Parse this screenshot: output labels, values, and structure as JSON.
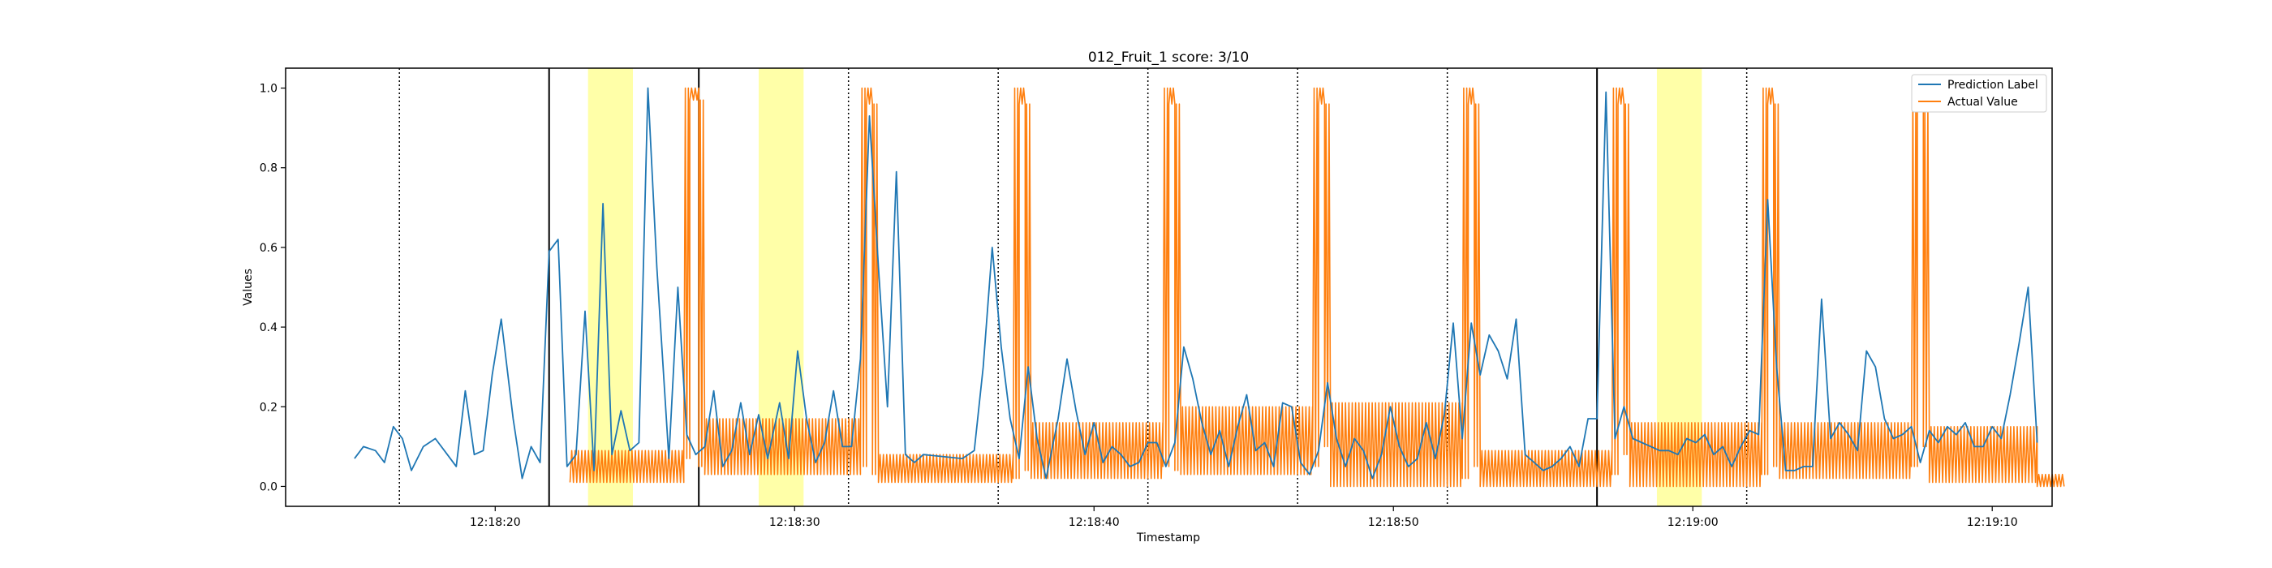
{
  "chart_data": {
    "type": "line",
    "title": "012_Fruit_1 score: 3/10",
    "xlabel": "Timestamp",
    "ylabel": "Values",
    "x_unit": "seconds after 12:18:00",
    "xlim": [
      13,
      72
    ],
    "ylim": [
      -0.05,
      1.05
    ],
    "x_ticks": [
      {
        "value": 20,
        "label": "12:18:20"
      },
      {
        "value": 30,
        "label": "12:18:30"
      },
      {
        "value": 40,
        "label": "12:18:40"
      },
      {
        "value": 50,
        "label": "12:18:50"
      },
      {
        "value": 60,
        "label": "12:19:00"
      },
      {
        "value": 70,
        "label": "12:19:10"
      }
    ],
    "y_ticks": [
      {
        "value": 0.0,
        "label": "0.0"
      },
      {
        "value": 0.2,
        "label": "0.2"
      },
      {
        "value": 0.4,
        "label": "0.4"
      },
      {
        "value": 0.6,
        "label": "0.6"
      },
      {
        "value": 0.8,
        "label": "0.8"
      },
      {
        "value": 1.0,
        "label": "1.0"
      }
    ],
    "legend": {
      "position": "top-right"
    },
    "grid": false,
    "series": [
      {
        "name": "Prediction Label",
        "color": "#1f77b4",
        "points": [
          [
            15.3,
            0.07
          ],
          [
            15.6,
            0.1
          ],
          [
            16.0,
            0.09
          ],
          [
            16.3,
            0.06
          ],
          [
            16.6,
            0.15
          ],
          [
            16.9,
            0.12
          ],
          [
            17.2,
            0.04
          ],
          [
            17.6,
            0.1
          ],
          [
            18.0,
            0.12
          ],
          [
            18.4,
            0.08
          ],
          [
            18.7,
            0.05
          ],
          [
            19.0,
            0.24
          ],
          [
            19.3,
            0.08
          ],
          [
            19.6,
            0.09
          ],
          [
            19.9,
            0.28
          ],
          [
            20.2,
            0.42
          ],
          [
            20.6,
            0.17
          ],
          [
            20.9,
            0.02
          ],
          [
            21.2,
            0.1
          ],
          [
            21.5,
            0.06
          ],
          [
            21.8,
            0.59
          ],
          [
            22.1,
            0.62
          ],
          [
            22.4,
            0.05
          ],
          [
            22.7,
            0.08
          ],
          [
            23.0,
            0.44
          ],
          [
            23.3,
            0.04
          ],
          [
            23.6,
            0.71
          ],
          [
            23.9,
            0.08
          ],
          [
            24.2,
            0.19
          ],
          [
            24.5,
            0.09
          ],
          [
            24.8,
            0.11
          ],
          [
            25.1,
            1.0
          ],
          [
            25.4,
            0.55
          ],
          [
            25.8,
            0.07
          ],
          [
            26.1,
            0.5
          ],
          [
            26.4,
            0.13
          ],
          [
            26.7,
            0.08
          ],
          [
            27.0,
            0.1
          ],
          [
            27.3,
            0.24
          ],
          [
            27.6,
            0.05
          ],
          [
            27.9,
            0.09
          ],
          [
            28.2,
            0.21
          ],
          [
            28.5,
            0.08
          ],
          [
            28.8,
            0.18
          ],
          [
            29.1,
            0.07
          ],
          [
            29.5,
            0.21
          ],
          [
            29.8,
            0.07
          ],
          [
            30.1,
            0.34
          ],
          [
            30.4,
            0.17
          ],
          [
            30.7,
            0.06
          ],
          [
            31.0,
            0.11
          ],
          [
            31.3,
            0.24
          ],
          [
            31.6,
            0.1
          ],
          [
            31.9,
            0.1
          ],
          [
            32.2,
            0.32
          ],
          [
            32.5,
            0.93
          ],
          [
            32.8,
            0.55
          ],
          [
            33.1,
            0.2
          ],
          [
            33.4,
            0.79
          ],
          [
            33.7,
            0.08
          ],
          [
            34.0,
            0.06
          ],
          [
            34.3,
            0.08
          ],
          [
            35.6,
            0.07
          ],
          [
            36.0,
            0.09
          ],
          [
            36.3,
            0.3
          ],
          [
            36.6,
            0.6
          ],
          [
            36.9,
            0.35
          ],
          [
            37.2,
            0.17
          ],
          [
            37.5,
            0.07
          ],
          [
            37.8,
            0.3
          ],
          [
            38.1,
            0.12
          ],
          [
            38.4,
            0.02
          ],
          [
            38.8,
            0.17
          ],
          [
            39.1,
            0.32
          ],
          [
            39.4,
            0.19
          ],
          [
            39.7,
            0.08
          ],
          [
            40.0,
            0.16
          ],
          [
            40.3,
            0.06
          ],
          [
            40.6,
            0.1
          ],
          [
            40.9,
            0.08
          ],
          [
            41.2,
            0.05
          ],
          [
            41.5,
            0.06
          ],
          [
            41.8,
            0.11
          ],
          [
            42.1,
            0.11
          ],
          [
            42.4,
            0.05
          ],
          [
            42.7,
            0.11
          ],
          [
            43.0,
            0.35
          ],
          [
            43.3,
            0.27
          ],
          [
            43.6,
            0.16
          ],
          [
            43.9,
            0.08
          ],
          [
            44.2,
            0.14
          ],
          [
            44.5,
            0.05
          ],
          [
            44.8,
            0.15
          ],
          [
            45.1,
            0.23
          ],
          [
            45.4,
            0.09
          ],
          [
            45.7,
            0.11
          ],
          [
            46.0,
            0.05
          ],
          [
            46.3,
            0.21
          ],
          [
            46.6,
            0.2
          ],
          [
            46.9,
            0.06
          ],
          [
            47.2,
            0.03
          ],
          [
            47.5,
            0.09
          ],
          [
            47.8,
            0.26
          ],
          [
            48.1,
            0.12
          ],
          [
            48.4,
            0.05
          ],
          [
            48.7,
            0.12
          ],
          [
            49.0,
            0.09
          ],
          [
            49.3,
            0.02
          ],
          [
            49.6,
            0.08
          ],
          [
            49.9,
            0.2
          ],
          [
            50.2,
            0.1
          ],
          [
            50.5,
            0.05
          ],
          [
            50.8,
            0.07
          ],
          [
            51.1,
            0.16
          ],
          [
            51.4,
            0.07
          ],
          [
            51.7,
            0.18
          ],
          [
            52.0,
            0.41
          ],
          [
            52.3,
            0.12
          ],
          [
            52.6,
            0.41
          ],
          [
            52.9,
            0.28
          ],
          [
            53.2,
            0.38
          ],
          [
            53.5,
            0.34
          ],
          [
            53.8,
            0.27
          ],
          [
            54.1,
            0.42
          ],
          [
            54.4,
            0.08
          ],
          [
            54.7,
            0.06
          ],
          [
            55.0,
            0.04
          ],
          [
            55.3,
            0.05
          ],
          [
            55.6,
            0.07
          ],
          [
            55.9,
            0.1
          ],
          [
            56.2,
            0.05
          ],
          [
            56.5,
            0.17
          ],
          [
            56.8,
            0.17
          ],
          [
            57.1,
            0.99
          ],
          [
            57.4,
            0.12
          ],
          [
            57.7,
            0.2
          ],
          [
            58.0,
            0.12
          ],
          [
            58.3,
            0.11
          ],
          [
            58.6,
            0.1
          ],
          [
            58.9,
            0.09
          ],
          [
            59.2,
            0.09
          ],
          [
            59.5,
            0.08
          ],
          [
            59.8,
            0.12
          ],
          [
            60.1,
            0.11
          ],
          [
            60.4,
            0.13
          ],
          [
            60.7,
            0.08
          ],
          [
            61.0,
            0.1
          ],
          [
            61.3,
            0.05
          ],
          [
            61.6,
            0.1
          ],
          [
            61.9,
            0.14
          ],
          [
            62.2,
            0.13
          ],
          [
            62.5,
            0.72
          ],
          [
            62.8,
            0.3
          ],
          [
            63.1,
            0.04
          ],
          [
            63.4,
            0.04
          ],
          [
            63.7,
            0.05
          ],
          [
            64.0,
            0.05
          ],
          [
            64.3,
            0.47
          ],
          [
            64.6,
            0.12
          ],
          [
            64.9,
            0.16
          ],
          [
            65.2,
            0.13
          ],
          [
            65.5,
            0.09
          ],
          [
            65.8,
            0.34
          ],
          [
            66.1,
            0.3
          ],
          [
            66.4,
            0.17
          ],
          [
            66.7,
            0.12
          ],
          [
            67.0,
            0.13
          ],
          [
            67.3,
            0.15
          ],
          [
            67.6,
            0.06
          ],
          [
            67.9,
            0.14
          ],
          [
            68.2,
            0.11
          ],
          [
            68.5,
            0.15
          ],
          [
            68.8,
            0.13
          ],
          [
            69.1,
            0.16
          ],
          [
            69.4,
            0.1
          ],
          [
            69.7,
            0.1
          ],
          [
            70.0,
            0.15
          ],
          [
            70.3,
            0.12
          ],
          [
            70.6,
            0.23
          ],
          [
            70.9,
            0.36
          ],
          [
            71.2,
            0.5
          ],
          [
            71.5,
            0.11
          ]
        ]
      },
      {
        "name": "Actual Value",
        "color": "#ff7f0e",
        "segments": [
          {
            "from": 22.5,
            "to": 26.3,
            "lo": 0.01,
            "hi": 0.09
          },
          {
            "from": 26.3,
            "to": 26.5,
            "lo": 0.07,
            "hi": 1.0
          },
          {
            "from": 26.5,
            "to": 26.8,
            "lo": 0.97,
            "hi": 1.0
          },
          {
            "from": 26.8,
            "to": 27.0,
            "lo": 0.05,
            "hi": 0.97
          },
          {
            "from": 27.0,
            "to": 32.2,
            "lo": 0.03,
            "hi": 0.17
          },
          {
            "from": 32.2,
            "to": 32.4,
            "lo": 0.05,
            "hi": 1.0
          },
          {
            "from": 32.4,
            "to": 32.6,
            "lo": 0.96,
            "hi": 1.0
          },
          {
            "from": 32.6,
            "to": 32.8,
            "lo": 0.03,
            "hi": 0.96
          },
          {
            "from": 32.8,
            "to": 37.3,
            "lo": 0.01,
            "hi": 0.08
          },
          {
            "from": 37.3,
            "to": 37.5,
            "lo": 0.02,
            "hi": 1.0
          },
          {
            "from": 37.5,
            "to": 37.7,
            "lo": 0.96,
            "hi": 1.0
          },
          {
            "from": 37.7,
            "to": 37.9,
            "lo": 0.04,
            "hi": 0.96
          },
          {
            "from": 37.9,
            "to": 42.3,
            "lo": 0.02,
            "hi": 0.16
          },
          {
            "from": 42.3,
            "to": 42.5,
            "lo": 0.05,
            "hi": 1.0
          },
          {
            "from": 42.5,
            "to": 42.7,
            "lo": 0.96,
            "hi": 1.0
          },
          {
            "from": 42.7,
            "to": 42.9,
            "lo": 0.04,
            "hi": 0.96
          },
          {
            "from": 42.9,
            "to": 47.3,
            "lo": 0.03,
            "hi": 0.2
          },
          {
            "from": 47.3,
            "to": 47.5,
            "lo": 0.05,
            "hi": 1.0
          },
          {
            "from": 47.5,
            "to": 47.7,
            "lo": 0.96,
            "hi": 1.0
          },
          {
            "from": 47.7,
            "to": 47.9,
            "lo": 0.1,
            "hi": 0.96
          },
          {
            "from": 47.9,
            "to": 52.3,
            "lo": 0.0,
            "hi": 0.21
          },
          {
            "from": 52.3,
            "to": 52.5,
            "lo": 0.02,
            "hi": 1.0
          },
          {
            "from": 52.5,
            "to": 52.7,
            "lo": 0.96,
            "hi": 1.0
          },
          {
            "from": 52.7,
            "to": 52.9,
            "lo": 0.05,
            "hi": 0.96
          },
          {
            "from": 52.9,
            "to": 57.3,
            "lo": 0.0,
            "hi": 0.09
          },
          {
            "from": 57.3,
            "to": 57.5,
            "lo": 0.03,
            "hi": 1.0
          },
          {
            "from": 57.5,
            "to": 57.7,
            "lo": 0.96,
            "hi": 1.0
          },
          {
            "from": 57.7,
            "to": 57.9,
            "lo": 0.08,
            "hi": 0.96
          },
          {
            "from": 57.9,
            "to": 62.3,
            "lo": 0.0,
            "hi": 0.16
          },
          {
            "from": 62.3,
            "to": 62.5,
            "lo": 0.03,
            "hi": 1.0
          },
          {
            "from": 62.5,
            "to": 62.7,
            "lo": 0.96,
            "hi": 1.0
          },
          {
            "from": 62.7,
            "to": 62.9,
            "lo": 0.05,
            "hi": 0.96
          },
          {
            "from": 62.9,
            "to": 67.3,
            "lo": 0.02,
            "hi": 0.16
          },
          {
            "from": 67.3,
            "to": 67.5,
            "lo": 0.05,
            "hi": 1.0
          },
          {
            "from": 67.5,
            "to": 67.7,
            "lo": 0.96,
            "hi": 1.0
          },
          {
            "from": 67.7,
            "to": 67.9,
            "lo": 0.1,
            "hi": 0.96
          },
          {
            "from": 67.9,
            "to": 71.5,
            "lo": 0.01,
            "hi": 0.15
          },
          {
            "from": 71.5,
            "to": 72.4,
            "lo": 0.0,
            "hi": 0.03
          }
        ]
      }
    ],
    "highlight_spans": [
      [
        23.1,
        24.6
      ],
      [
        28.8,
        30.3
      ],
      [
        58.8,
        60.3
      ]
    ],
    "solid_vlines": [
      21.8,
      26.8,
      56.8
    ],
    "dotted_vlines": [
      16.8,
      31.8,
      36.8,
      41.8,
      46.8,
      51.8,
      61.8
    ],
    "highlight_color": "#ffffa8"
  }
}
